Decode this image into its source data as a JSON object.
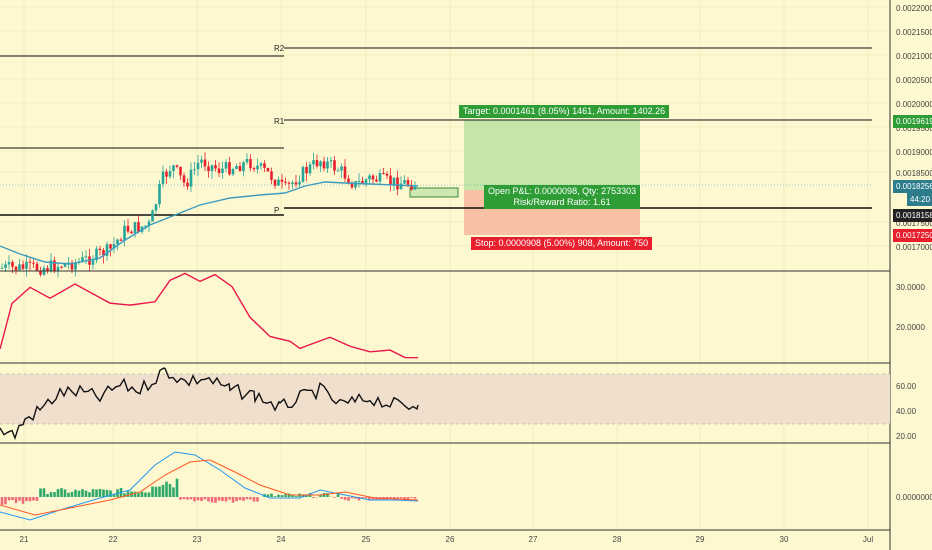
{
  "price_axis": {
    "labels": [
      "0.0022000",
      "0.0021500",
      "0.0021000",
      "0.0020500",
      "0.0020000",
      "0.0019500",
      "0.0019000",
      "0.0018500",
      "0.0017500",
      "0.0017000"
    ],
    "tags": {
      "target": {
        "text": "0.0019619",
        "color": "#2e9d35"
      },
      "current": {
        "text": "0.0018256",
        "color": "#2d7c8c"
      },
      "countdown": {
        "text": "44:20",
        "color": "#2d7c8c"
      },
      "entry": {
        "text": "0.0018158",
        "color": "#222222"
      },
      "stop": {
        "text": "0.0017250",
        "color": "#e8202e"
      }
    }
  },
  "pivots": {
    "r2": "R2",
    "r1": "R1",
    "p": "P"
  },
  "position": {
    "target_text": "Target: 0.0001461 (8.05%) 1461, Amount: 1402.26",
    "open_pnl_text": "Open P&L: 0.0000098, Qty: 2753303",
    "risk_reward_text": "Risk/Reward Ratio: 1.61",
    "stop_text": "Stop: 0.0000908 (5.00%) 908, Amount: 750"
  },
  "adx_axis": {
    "labels": [
      "30.0000",
      "20.0000"
    ]
  },
  "rsi_axis": {
    "labels": [
      "60.00",
      "40.00",
      "20.00"
    ]
  },
  "macd_axis": {
    "labels": [
      "0.0000000"
    ]
  },
  "date_axis": {
    "labels": [
      "21",
      "22",
      "23",
      "24",
      "25",
      "26",
      "27",
      "28",
      "29",
      "30",
      "Jul"
    ]
  },
  "colors": {
    "background": "#fdf8d0",
    "bull": "#26a69a",
    "bear": "#e8202e",
    "ma": "#3b9bbf",
    "adx": "#e8164a",
    "rsi": "#111111",
    "macd_line": "#2196f3",
    "signal_line": "#ff5722",
    "profit_zone": "#c5e6a6",
    "loss_zone": "#f9c1a3",
    "rsi_band": "#f1dfce"
  }
}
